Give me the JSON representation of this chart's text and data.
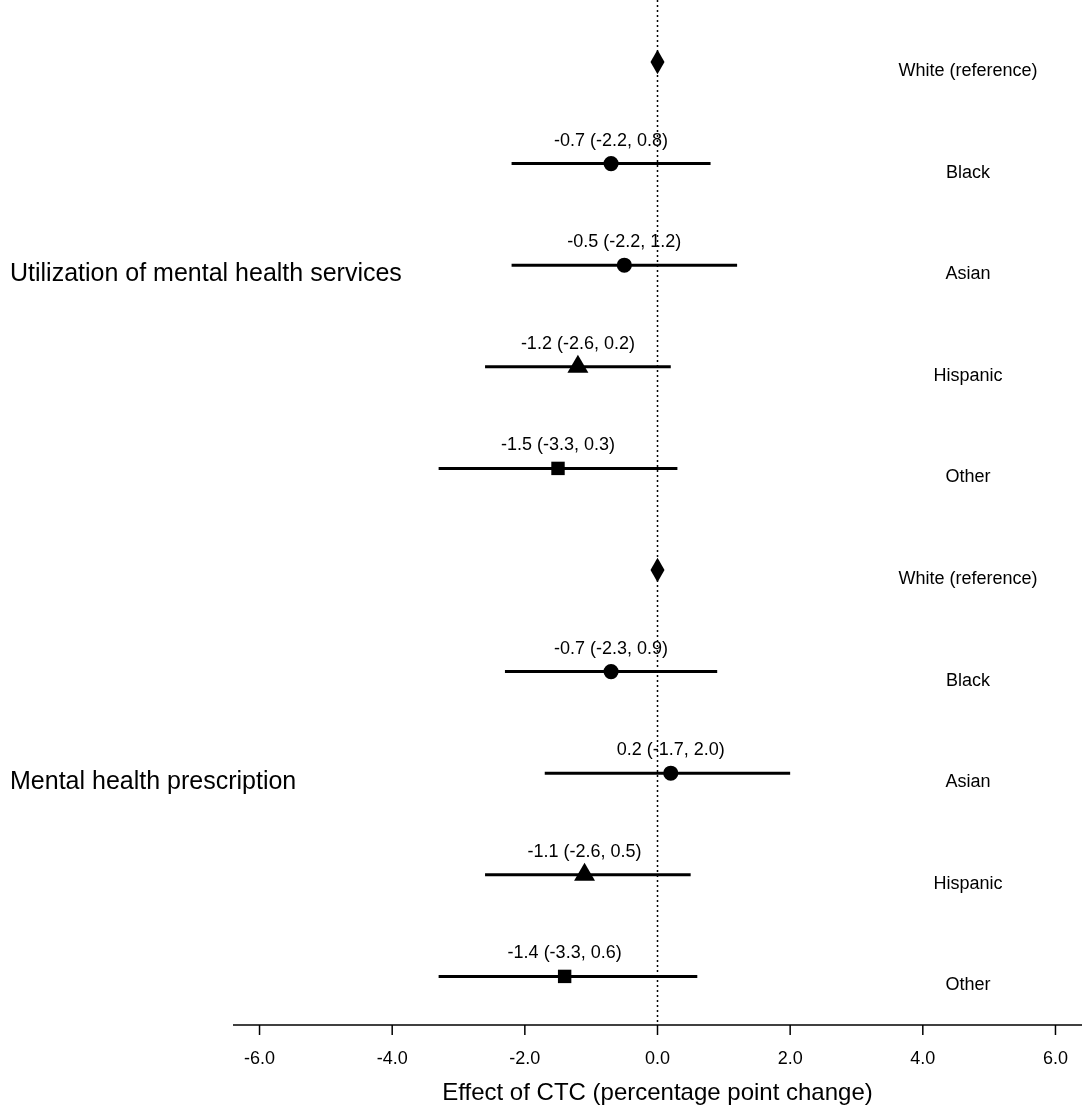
{
  "chart_data": {
    "type": "scatter",
    "orientation": "horizontal",
    "xlabel": "Effect of CTC (percentage point change)",
    "categories": [
      "White (reference)",
      "Black",
      "Asian",
      "Hispanic",
      "Other",
      "White (reference)",
      "Black",
      "Asian",
      "Hispanic",
      "Other"
    ],
    "annotations": [
      "Utilization of mental health services",
      "Mental health prescription"
    ],
    "xlim": [
      -6.4,
      6.4
    ],
    "xticks": [
      {
        "value": -6,
        "label": "-6.0"
      },
      {
        "value": -4,
        "label": "-4.0"
      },
      {
        "value": -2,
        "label": "-2.0"
      },
      {
        "value": 0,
        "label": "0.0"
      },
      {
        "value": 2,
        "label": "2.0"
      },
      {
        "value": 4,
        "label": "4.0"
      },
      {
        "value": 6,
        "label": "6.0"
      }
    ],
    "ref_lines": [
      {
        "axis": "x",
        "value": 0,
        "line_style": "dotted",
        "color": "#000000"
      }
    ],
    "grid": false,
    "series": [
      {
        "color": "#000000",
        "marker": "diamond",
        "values": [
          0,
          null,
          null,
          null,
          null,
          0,
          null,
          null,
          null,
          null
        ],
        "errors": [
          null,
          null,
          null,
          null,
          null,
          null,
          null,
          null,
          null,
          null
        ],
        "value_labels": [
          null,
          null,
          null,
          null,
          null,
          null,
          null,
          null,
          null,
          null
        ]
      },
      {
        "color": "#000000",
        "marker": "circle",
        "values": [
          null,
          -0.7,
          null,
          null,
          null,
          null,
          -0.7,
          null,
          null,
          null
        ],
        "errors": [
          null,
          [
            -2.2,
            0.8
          ],
          null,
          null,
          null,
          null,
          [
            -2.3,
            0.9
          ],
          null,
          null,
          null
        ],
        "value_labels": [
          null,
          "-0.7 (-2.2, 0.8)",
          null,
          null,
          null,
          null,
          "-0.7 (-2.3, 0.9)",
          null,
          null,
          null
        ]
      },
      {
        "color": "#000000",
        "marker": "circle",
        "values": [
          null,
          null,
          -0.5,
          null,
          null,
          null,
          null,
          0.2,
          null,
          null
        ],
        "errors": [
          null,
          null,
          [
            -2.2,
            1.2
          ],
          null,
          null,
          null,
          null,
          [
            -1.7,
            2.0
          ],
          null,
          null
        ],
        "value_labels": [
          null,
          null,
          "-0.5 (-2.2, 1.2)",
          null,
          null,
          null,
          null,
          "0.2 (-1.7, 2.0)",
          null,
          null
        ]
      },
      {
        "color": "#000000",
        "marker": "triangle",
        "values": [
          null,
          null,
          null,
          -1.2,
          null,
          null,
          null,
          null,
          -1.1,
          null
        ],
        "errors": [
          null,
          null,
          null,
          [
            -2.6,
            0.2
          ],
          null,
          null,
          null,
          null,
          [
            -2.6,
            0.5
          ],
          null
        ],
        "value_labels": [
          null,
          null,
          null,
          "-1.2 (-2.6, 0.2)",
          null,
          null,
          null,
          null,
          "-1.1 (-2.6, 0.5)",
          null
        ]
      },
      {
        "color": "#000000",
        "marker": "square",
        "values": [
          null,
          null,
          null,
          null,
          -1.5,
          null,
          null,
          null,
          null,
          -1.4
        ],
        "errors": [
          null,
          null,
          null,
          null,
          [
            -3.3,
            0.3
          ],
          null,
          null,
          null,
          null,
          [
            -3.3,
            0.6
          ]
        ],
        "value_labels": [
          null,
          null,
          null,
          null,
          "-1.5 (-3.3, 0.3)",
          null,
          null,
          null,
          null,
          "-1.4 (-3.3, 0.6)"
        ]
      }
    ]
  }
}
